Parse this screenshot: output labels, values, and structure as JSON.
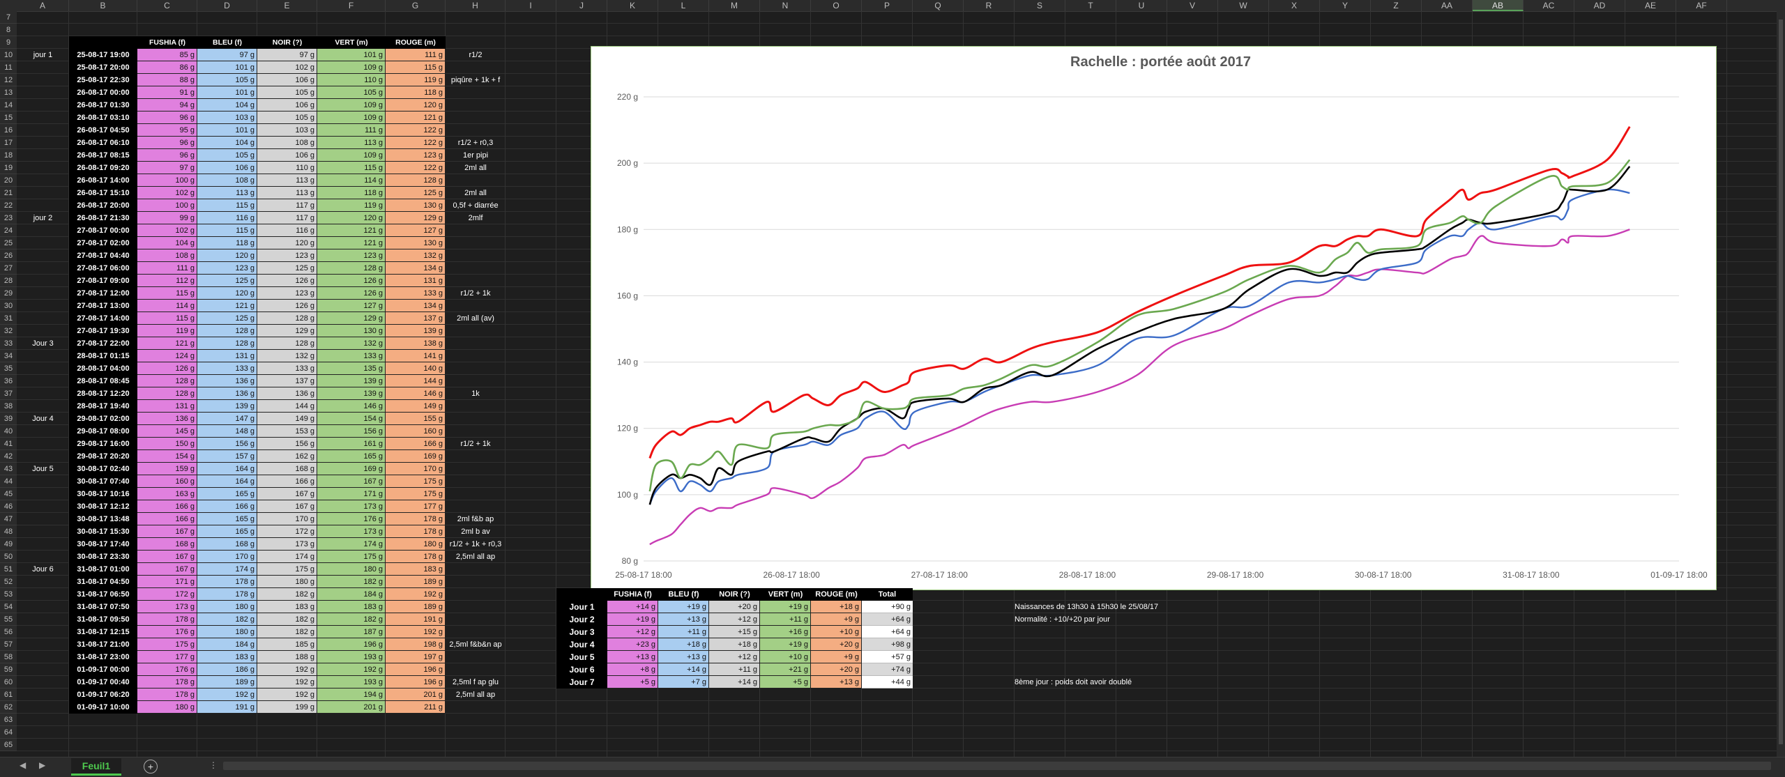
{
  "columns": [
    "A",
    "B",
    "C",
    "D",
    "E",
    "F",
    "G",
    "H",
    "I",
    "J",
    "K",
    "L",
    "M",
    "N",
    "O",
    "P",
    "Q",
    "R",
    "S",
    "T",
    "U",
    "V",
    "W",
    "X",
    "Y",
    "Z",
    "AA",
    "AB",
    "AC",
    "AD",
    "AE",
    "AF"
  ],
  "selected_column": "AB",
  "row_start": 7,
  "row_end": 65,
  "table_headers": [
    "FUSHIA (f)",
    "BLEU (f)",
    "NOIR (?)",
    "VERT (m)",
    "ROUGE (m)"
  ],
  "rows": [
    {
      "day": "jour 1",
      "date": "25-08-17 19:00",
      "v": [
        "85 g",
        "97 g",
        "97 g",
        "101 g",
        "111 g"
      ],
      "note": "r1/2"
    },
    {
      "day": "",
      "date": "25-08-17 20:00",
      "v": [
        "86 g",
        "101 g",
        "102 g",
        "109 g",
        "115 g"
      ],
      "note": ""
    },
    {
      "day": "",
      "date": "25-08-17 22:30",
      "v": [
        "88 g",
        "105 g",
        "106 g",
        "110 g",
        "119 g"
      ],
      "note": "piqûre + 1k + f"
    },
    {
      "day": "",
      "date": "26-08-17 00:00",
      "v": [
        "91 g",
        "101 g",
        "105 g",
        "105 g",
        "118 g"
      ],
      "note": ""
    },
    {
      "day": "",
      "date": "26-08-17 01:30",
      "v": [
        "94 g",
        "104 g",
        "106 g",
        "109 g",
        "120 g"
      ],
      "note": ""
    },
    {
      "day": "",
      "date": "26-08-17 03:10",
      "v": [
        "96 g",
        "103 g",
        "105 g",
        "109 g",
        "121 g"
      ],
      "note": ""
    },
    {
      "day": "",
      "date": "26-08-17 04:50",
      "v": [
        "95 g",
        "101 g",
        "103 g",
        "111 g",
        "122 g"
      ],
      "note": ""
    },
    {
      "day": "",
      "date": "26-08-17 06:10",
      "v": [
        "96 g",
        "104 g",
        "108 g",
        "113 g",
        "122 g"
      ],
      "note": "r1/2 + r0,3"
    },
    {
      "day": "",
      "date": "26-08-17 08:15",
      "v": [
        "96 g",
        "105 g",
        "106 g",
        "109 g",
        "123 g"
      ],
      "note": "1er pipi"
    },
    {
      "day": "",
      "date": "26-08-17 09:20",
      "v": [
        "97 g",
        "106 g",
        "110 g",
        "115 g",
        "122 g"
      ],
      "note": "2ml all"
    },
    {
      "day": "",
      "date": "26-08-17 14:00",
      "v": [
        "100 g",
        "108 g",
        "113 g",
        "114 g",
        "128 g"
      ],
      "note": ""
    },
    {
      "day": "",
      "date": "26-08-17 15:10",
      "v": [
        "102 g",
        "113 g",
        "113 g",
        "118 g",
        "125 g"
      ],
      "note": "2ml all"
    },
    {
      "day": "",
      "date": "26-08-17 20:00",
      "v": [
        "100 g",
        "115 g",
        "117 g",
        "119 g",
        "130 g"
      ],
      "note": "0,5f + diarrée"
    },
    {
      "day": "jour 2",
      "date": "26-08-17 21:30",
      "v": [
        "99 g",
        "116 g",
        "117 g",
        "120 g",
        "129 g"
      ],
      "note": "2mlf"
    },
    {
      "day": "",
      "date": "27-08-17 00:00",
      "v": [
        "102 g",
        "115 g",
        "116 g",
        "121 g",
        "127 g"
      ],
      "note": ""
    },
    {
      "day": "",
      "date": "27-08-17 02:00",
      "v": [
        "104 g",
        "118 g",
        "120 g",
        "121 g",
        "130 g"
      ],
      "note": ""
    },
    {
      "day": "",
      "date": "27-08-17 04:40",
      "v": [
        "108 g",
        "120 g",
        "123 g",
        "123 g",
        "132 g"
      ],
      "note": ""
    },
    {
      "day": "",
      "date": "27-08-17 06:00",
      "v": [
        "111 g",
        "123 g",
        "125 g",
        "128 g",
        "134 g"
      ],
      "note": ""
    },
    {
      "day": "",
      "date": "27-08-17 09:00",
      "v": [
        "112 g",
        "125 g",
        "126 g",
        "126 g",
        "131 g"
      ],
      "note": ""
    },
    {
      "day": "",
      "date": "27-08-17 12:00",
      "v": [
        "115 g",
        "120 g",
        "123 g",
        "126 g",
        "133 g"
      ],
      "note": "r1/2 + 1k"
    },
    {
      "day": "",
      "date": "27-08-17 13:00",
      "v": [
        "114 g",
        "121 g",
        "126 g",
        "127 g",
        "134 g"
      ],
      "note": ""
    },
    {
      "day": "",
      "date": "27-08-17 14:00",
      "v": [
        "115 g",
        "125 g",
        "128 g",
        "129 g",
        "137 g"
      ],
      "note": "2ml all (av)"
    },
    {
      "day": "",
      "date": "27-08-17 19:30",
      "v": [
        "119 g",
        "128 g",
        "129 g",
        "130 g",
        "139 g"
      ],
      "note": ""
    },
    {
      "day": "Jour 3",
      "date": "27-08-17 22:00",
      "v": [
        "121 g",
        "128 g",
        "128 g",
        "132 g",
        "138 g"
      ],
      "note": ""
    },
    {
      "day": "",
      "date": "28-08-17 01:15",
      "v": [
        "124 g",
        "131 g",
        "132 g",
        "133 g",
        "141 g"
      ],
      "note": ""
    },
    {
      "day": "",
      "date": "28-08-17 04:00",
      "v": [
        "126 g",
        "133 g",
        "133 g",
        "135 g",
        "140 g"
      ],
      "note": ""
    },
    {
      "day": "",
      "date": "28-08-17 08:45",
      "v": [
        "128 g",
        "136 g",
        "137 g",
        "139 g",
        "144 g"
      ],
      "note": ""
    },
    {
      "day": "",
      "date": "28-08-17 12:20",
      "v": [
        "128 g",
        "136 g",
        "136 g",
        "139 g",
        "146 g"
      ],
      "note": "1k"
    },
    {
      "day": "",
      "date": "28-08-17 19:40",
      "v": [
        "131 g",
        "139 g",
        "144 g",
        "146 g",
        "149 g"
      ],
      "note": ""
    },
    {
      "day": "Jour 4",
      "date": "29-08-17 02:00",
      "v": [
        "136 g",
        "147 g",
        "149 g",
        "154 g",
        "155 g"
      ],
      "note": ""
    },
    {
      "day": "",
      "date": "29-08-17 08:00",
      "v": [
        "145 g",
        "148 g",
        "153 g",
        "156 g",
        "160 g"
      ],
      "note": ""
    },
    {
      "day": "",
      "date": "29-08-17 16:00",
      "v": [
        "150 g",
        "156 g",
        "156 g",
        "161 g",
        "166 g"
      ],
      "note": "r1/2 + 1k"
    },
    {
      "day": "",
      "date": "29-08-17 20:20",
      "v": [
        "154 g",
        "157 g",
        "162 g",
        "165 g",
        "169 g"
      ],
      "note": ""
    },
    {
      "day": "Jour 5",
      "date": "30-08-17 02:40",
      "v": [
        "159 g",
        "164 g",
        "168 g",
        "169 g",
        "170 g"
      ],
      "note": ""
    },
    {
      "day": "",
      "date": "30-08-17 07:40",
      "v": [
        "160 g",
        "164 g",
        "166 g",
        "167 g",
        "175 g"
      ],
      "note": ""
    },
    {
      "day": "",
      "date": "30-08-17 10:16",
      "v": [
        "163 g",
        "165 g",
        "167 g",
        "171 g",
        "175 g"
      ],
      "note": ""
    },
    {
      "day": "",
      "date": "30-08-17 12:12",
      "v": [
        "166 g",
        "166 g",
        "167 g",
        "173 g",
        "177 g"
      ],
      "note": ""
    },
    {
      "day": "",
      "date": "30-08-17 13:48",
      "v": [
        "166 g",
        "165 g",
        "170 g",
        "176 g",
        "178 g"
      ],
      "note": "2ml f&b ap"
    },
    {
      "day": "",
      "date": "30-08-17 15:30",
      "v": [
        "167 g",
        "165 g",
        "172 g",
        "173 g",
        "178 g"
      ],
      "note": "2ml b av"
    },
    {
      "day": "",
      "date": "30-08-17 17:40",
      "v": [
        "168 g",
        "168 g",
        "173 g",
        "174 g",
        "180 g"
      ],
      "note": "r1/2 + 1k + r0,3"
    },
    {
      "day": "",
      "date": "30-08-17 23:30",
      "v": [
        "167 g",
        "170 g",
        "174 g",
        "175 g",
        "178 g"
      ],
      "note": "2,5ml all ap"
    },
    {
      "day": "Jour 6",
      "date": "31-08-17 01:00",
      "v": [
        "167 g",
        "174 g",
        "175 g",
        "180 g",
        "183 g"
      ],
      "note": ""
    },
    {
      "day": "",
      "date": "31-08-17 04:50",
      "v": [
        "171 g",
        "178 g",
        "180 g",
        "182 g",
        "189 g"
      ],
      "note": ""
    },
    {
      "day": "",
      "date": "31-08-17 06:50",
      "v": [
        "172 g",
        "178 g",
        "182 g",
        "184 g",
        "192 g"
      ],
      "note": ""
    },
    {
      "day": "",
      "date": "31-08-17 07:50",
      "v": [
        "173 g",
        "180 g",
        "183 g",
        "183 g",
        "189 g"
      ],
      "note": ""
    },
    {
      "day": "",
      "date": "31-08-17 09:50",
      "v": [
        "178 g",
        "182 g",
        "182 g",
        "182 g",
        "191 g"
      ],
      "note": ""
    },
    {
      "day": "",
      "date": "31-08-17 12:15",
      "v": [
        "176 g",
        "180 g",
        "182 g",
        "187 g",
        "192 g"
      ],
      "note": ""
    },
    {
      "day": "",
      "date": "31-08-17 21:00",
      "v": [
        "175 g",
        "184 g",
        "185 g",
        "196 g",
        "198 g"
      ],
      "note": "2,5ml f&b&n ap"
    },
    {
      "day": "",
      "date": "31-08-17 23:00",
      "v": [
        "177 g",
        "183 g",
        "188 g",
        "193 g",
        "197 g"
      ],
      "note": ""
    },
    {
      "day": "",
      "date": "01-09-17 00:00",
      "v": [
        "176 g",
        "186 g",
        "192 g",
        "192 g",
        "196 g"
      ],
      "note": ""
    },
    {
      "day": "",
      "date": "01-09-17 00:40",
      "v": [
        "178 g",
        "189 g",
        "192 g",
        "193 g",
        "196 g"
      ],
      "note": "2,5ml f ap glu"
    },
    {
      "day": "",
      "date": "01-09-17 06:20",
      "v": [
        "178 g",
        "192 g",
        "192 g",
        "194 g",
        "201 g"
      ],
      "note": "2,5ml all ap"
    },
    {
      "day": "",
      "date": "01-09-17 10:00",
      "v": [
        "180 g",
        "191 g",
        "199 g",
        "201 g",
        "211 g"
      ],
      "note": ""
    }
  ],
  "summary": {
    "headers": [
      "FUSHIA (f)",
      "BLEU (f)",
      "NOIR (?)",
      "VERT (m)",
      "ROUGE (m)",
      "Total"
    ],
    "rows": [
      {
        "day": "Jour 1",
        "v": [
          "+14 g",
          "+19 g",
          "+20 g",
          "+19 g",
          "+18 g"
        ],
        "total": "+90 g"
      },
      {
        "day": "Jour 2",
        "v": [
          "+19 g",
          "+13 g",
          "+12 g",
          "+11 g",
          "+9 g"
        ],
        "total": "+64 g"
      },
      {
        "day": "Jour 3",
        "v": [
          "+12 g",
          "+11 g",
          "+15 g",
          "+16 g",
          "+10 g"
        ],
        "total": "+64 g"
      },
      {
        "day": "Jour 4",
        "v": [
          "+23 g",
          "+18 g",
          "+18 g",
          "+19 g",
          "+20 g"
        ],
        "total": "+98 g"
      },
      {
        "day": "Jour 5",
        "v": [
          "+13 g",
          "+13 g",
          "+12 g",
          "+10 g",
          "+9 g"
        ],
        "total": "+57 g"
      },
      {
        "day": "Jour 6",
        "v": [
          "+8 g",
          "+14 g",
          "+11 g",
          "+21 g",
          "+20 g"
        ],
        "total": "+74 g"
      },
      {
        "day": "Jour 7",
        "v": [
          "+5 g",
          "+7 g",
          "+14 g",
          "+5 g",
          "+13 g"
        ],
        "total": "+44 g"
      }
    ]
  },
  "info": {
    "line1": "Naissances de 13h30 à 15h30 le 25/08/17",
    "line2": "Normalité : +10/+20 par jour",
    "line3": "8ème jour : poids doit avoir doublé"
  },
  "chart_data": {
    "type": "line",
    "title": "Rachelle : portée août 2017",
    "y_ticks": [
      "80 g",
      "100 g",
      "120 g",
      "140 g",
      "160 g",
      "180 g",
      "200 g",
      "220 g"
    ],
    "x_ticks": [
      "25-08-17 18:00",
      "26-08-17 18:00",
      "27-08-17 18:00",
      "28-08-17 18:00",
      "29-08-17 18:00",
      "30-08-17 18:00",
      "31-08-17 18:00",
      "01-09-17 18:00"
    ],
    "ylim": [
      80,
      220
    ],
    "xlim": [
      "25-08-17 18:00",
      "01-09-17 18:00"
    ],
    "grid": true,
    "colors": {
      "fushia": "#c83cb4",
      "bleu": "#3c6cc8",
      "noir": "#000000",
      "vert": "#6aa84f",
      "rouge": "#ee1111"
    }
  },
  "sheet_tab": "Feuil1",
  "nav": {
    "prev": "◀",
    "next": "▶",
    "add": "+",
    "more": "⋮"
  }
}
